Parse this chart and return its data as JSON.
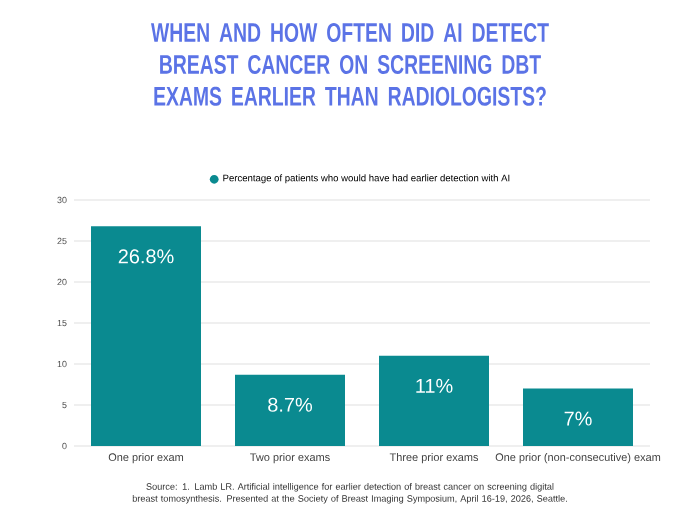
{
  "chart_data": {
    "type": "bar",
    "title": "WHEN AND HOW OFTEN DID AI DETECT BREAST CANCER ON SCREENING DBT EXAMS EARLIER THAN RADIOLOGISTS?",
    "categories": [
      "One prior exam",
      "Two prior exams",
      "Three prior exams",
      "One prior (non-consecutive) exam"
    ],
    "series": [
      {
        "name": "Percentage of patients who would have had earlier detection with AI",
        "color": "#0a8a90",
        "values": [
          26.8,
          8.7,
          11,
          7
        ],
        "value_labels": [
          "26.8%",
          "8.7%",
          "11%",
          "7%"
        ]
      }
    ],
    "ylim": [
      0,
      30
    ],
    "yticks": [
      0,
      5,
      10,
      15,
      20,
      25,
      30
    ],
    "grid": "y",
    "legend": "top",
    "annotations": [
      "Source: 1. Lamb LR. Artificial intelligence for earlier detection of breast cancer on screening digital breast tomosynthesis. Presented at the Society of Breast Imaging Symposium, April 16-19, 2026, Seattle."
    ]
  }
}
